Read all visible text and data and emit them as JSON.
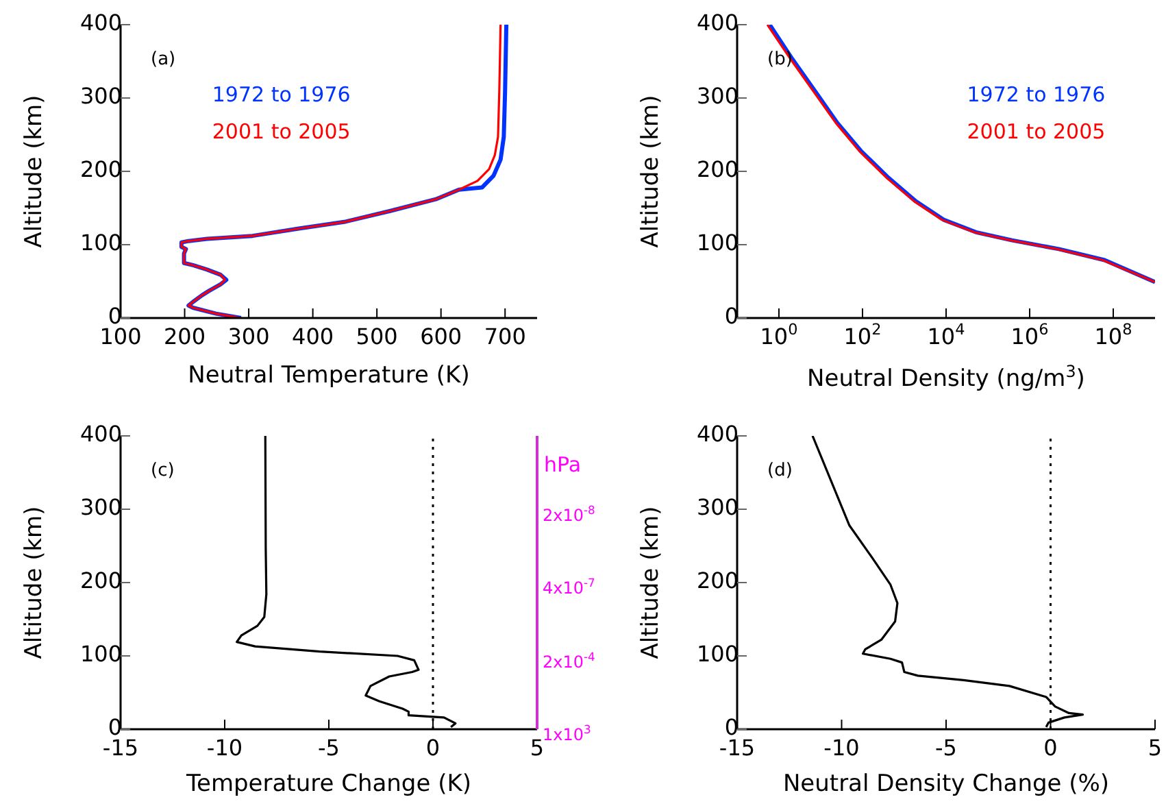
{
  "chart_data": [
    {
      "type": "line",
      "xlabel": "Neutral Temperature (K)",
      "ylabel": "Altitude (km)",
      "xlim": [
        100,
        750
      ],
      "xticks": [
        100,
        200,
        300,
        400,
        500,
        600,
        700
      ],
      "ylim": [
        0,
        400
      ],
      "yticks": [
        0,
        100,
        200,
        300,
        400
      ],
      "legend": "top left",
      "grid": false,
      "annotations": [
        "(a)"
      ],
      "series": [
        {
          "name": "1972 to 1976",
          "color": "#0033ff",
          "x": [
            288,
            249,
            213,
            206,
            213,
            227,
            238,
            256,
            265,
            256,
            235,
            213,
            199,
            199,
            202,
            195,
            195,
            206,
            235,
            306,
            378,
            449,
            521,
            592,
            628,
            664,
            682,
            693,
            698,
            700,
            702
          ],
          "values": [
            0,
            6,
            14,
            17,
            22,
            31,
            37,
            46,
            52,
            59,
            66,
            72,
            75,
            88,
            94,
            97,
            103,
            105,
            108,
            112,
            122,
            131,
            146,
            162,
            175,
            178,
            194,
            216,
            247,
            309,
            400
          ]
        },
        {
          "name": "2001 to 2005",
          "color": "#ff0000",
          "x": [
            288,
            249,
            213,
            206,
            213,
            227,
            238,
            256,
            263,
            256,
            235,
            213,
            199,
            199,
            202,
            195,
            195,
            206,
            235,
            306,
            378,
            449,
            521,
            592,
            628,
            657,
            675,
            684,
            689,
            691,
            693
          ],
          "values": [
            0,
            6,
            14,
            17,
            22,
            31,
            37,
            46,
            52,
            59,
            66,
            72,
            75,
            88,
            94,
            97,
            103,
            105,
            108,
            112,
            122,
            131,
            146,
            162,
            175,
            187,
            203,
            222,
            247,
            309,
            400
          ]
        }
      ]
    },
    {
      "type": "line",
      "xlabel": "Neutral Density (ng/m$^{3}$)",
      "ylabel": "Altitude (km)",
      "log": "x",
      "xlim": [
        0.1,
        1000000000
      ],
      "xticks": [
        {
          "value": 1,
          "label": "10$^{0}$"
        },
        {
          "value": 100,
          "label": "10$^{2}$"
        },
        {
          "value": 10000,
          "label": "10$^{4}$"
        },
        {
          "value": 1000000,
          "label": "10$^{6}$"
        },
        {
          "value": 100000000,
          "label": "10$^{8}$"
        }
      ],
      "ylim": [
        0,
        400
      ],
      "yticks": [
        0,
        100,
        200,
        300,
        400
      ],
      "legend": "top right",
      "grid": false,
      "annotations": [
        "(b)"
      ],
      "series": [
        {
          "name": "1972 to 1976",
          "color": "#0033ff",
          "x": [
            0.6,
            2.1,
            7.4,
            25,
            91,
            420,
            1900,
            8700,
            52000,
            380000,
            5000000,
            62000000,
            1000000000
          ],
          "values": [
            400,
            353,
            309,
            266,
            228,
            191,
            159,
            134,
            117,
            106,
            94,
            79,
            49
          ]
        },
        {
          "name": "2001 to 2005",
          "color": "#ff0000",
          "x": [
            0.53,
            1.9,
            6.7,
            23,
            83,
            380,
            1740,
            7950,
            47000,
            350000,
            4500000,
            56000000,
            1000000000
          ],
          "values": [
            400,
            353,
            309,
            266,
            228,
            191,
            159,
            134,
            117,
            106,
            94,
            79,
            49
          ]
        }
      ]
    },
    {
      "type": "line",
      "xlabel": "Temperature Change (K)",
      "ylabel": "Altitude (km)",
      "y2label": "hPa",
      "xlim": [
        -15,
        5
      ],
      "xticks": [
        -15,
        -10,
        -5,
        0,
        5
      ],
      "ylim": [
        0,
        400
      ],
      "yticks": [
        0,
        100,
        200,
        300,
        400
      ],
      "grid": false,
      "annotations": [
        "(c)",
        "1x10$^{3}$",
        "2x10$^{-4}$",
        "4x10$^{-7}$",
        "2x10$^{-8}$"
      ],
      "ref_lines": [
        {
          "axis": "x",
          "value": 0,
          "line_style": "dotted",
          "color": "#000000"
        }
      ],
      "series": [
        {
          "color": "#000000",
          "x": [
            0.86,
            1.08,
            0.53,
            -1.17,
            -1.17,
            -1.46,
            -2.57,
            -3.23,
            -3.0,
            -2.1,
            -1.0,
            -0.69,
            -0.9,
            -1.7,
            -5.44,
            -8.54,
            -9.42,
            -9.2,
            -8.43,
            -8.1,
            -8.0,
            -8.03,
            -8.05
          ],
          "values": [
            3,
            8,
            16,
            19,
            24,
            28,
            38,
            46,
            59,
            72,
            78,
            81,
            94,
            100,
            106,
            113,
            119,
            128,
            141,
            153,
            184,
            247,
            400
          ]
        }
      ]
    },
    {
      "type": "line",
      "xlabel": "Neutral Density Change (%)",
      "ylabel": "Altitude (km)",
      "xlim": [
        -15,
        5
      ],
      "xticks": [
        -15,
        -10,
        -5,
        0,
        5
      ],
      "ylim": [
        0,
        400
      ],
      "yticks": [
        0,
        100,
        200,
        300,
        400
      ],
      "grid": false,
      "annotations": [
        "(d)"
      ],
      "ref_lines": [
        {
          "axis": "x",
          "value": 0,
          "line_style": "dotted",
          "color": "#000000"
        }
      ],
      "series": [
        {
          "color": "#000000",
          "x": [
            -0.21,
            -0.1,
            0.66,
            1.54,
            0.88,
            0.22,
            -0.21,
            -1.97,
            -4.16,
            -6.35,
            -7.0,
            -7.11,
            -7.66,
            -8.98,
            -8.87,
            -8.1,
            -7.44,
            -7.33,
            -7.66,
            -8.54,
            -9.63,
            -11.39
          ],
          "values": [
            3,
            9,
            16,
            20,
            22,
            31,
            44,
            59,
            67,
            73,
            78,
            91,
            96,
            103,
            109,
            122,
            147,
            172,
            197,
            234,
            278,
            400
          ]
        }
      ]
    }
  ]
}
